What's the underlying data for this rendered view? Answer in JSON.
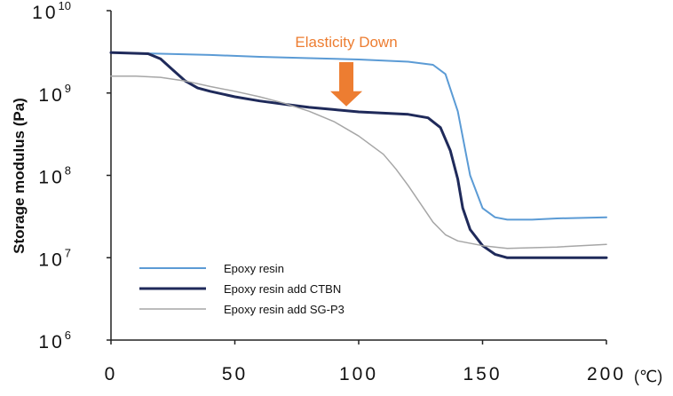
{
  "chart_data": {
    "type": "line",
    "title": "",
    "xlabel": "",
    "x_unit": "(℃)",
    "ylabel": "Storage modulus (Pa)",
    "xlim": [
      0,
      200
    ],
    "ylim": [
      1000000,
      10000000000
    ],
    "y_scale": "log",
    "grid": false,
    "legend_position": "bottom-left",
    "x_ticks": [
      "0",
      "50",
      "100",
      "150",
      "200"
    ],
    "y_ticks": [
      {
        "base": "10",
        "exp": "10"
      },
      {
        "base": "10",
        "exp": "9"
      },
      {
        "base": "10",
        "exp": "8"
      },
      {
        "base": "10",
        "exp": "7"
      },
      {
        "base": "10",
        "exp": "6"
      }
    ],
    "annotation": {
      "text": "Elasticity Down",
      "color": "#ed7d31",
      "x": 95,
      "y": 1000000000
    },
    "series": [
      {
        "name": "Epoxy resin",
        "color": "#5b9bd5",
        "width": 2,
        "x": [
          0,
          20,
          40,
          60,
          80,
          100,
          120,
          130,
          135,
          140,
          145,
          150,
          155,
          160,
          170,
          180,
          200
        ],
        "y": [
          3100000000,
          3000000000,
          2900000000,
          2750000000,
          2650000000,
          2550000000,
          2400000000,
          2200000000,
          1700000000,
          600000000,
          100000000,
          40000000,
          31000000,
          29000000,
          29000000,
          30000000,
          31000000
        ]
      },
      {
        "name": "Epoxy resin add CTBN",
        "color": "#1f2a5a",
        "width": 3,
        "x": [
          0,
          15,
          20,
          25,
          30,
          35,
          40,
          50,
          60,
          70,
          80,
          90,
          100,
          110,
          120,
          128,
          133,
          137,
          140,
          142,
          145,
          150,
          155,
          160,
          170,
          200
        ],
        "y": [
          3100000000,
          3000000000,
          2600000000,
          1900000000,
          1400000000,
          1150000000,
          1050000000,
          900000000,
          800000000,
          730000000,
          670000000,
          630000000,
          590000000,
          570000000,
          550000000,
          500000000,
          380000000,
          200000000,
          90000000,
          40000000,
          22000000,
          14000000,
          11000000,
          10000000,
          10000000,
          10000000
        ]
      },
      {
        "name": "Epoxy resin add SG-P3",
        "color": "#a6a6a6",
        "width": 1.5,
        "x": [
          0,
          10,
          20,
          30,
          40,
          50,
          60,
          70,
          80,
          90,
          100,
          110,
          115,
          120,
          125,
          130,
          135,
          140,
          150,
          160,
          180,
          200
        ],
        "y": [
          1600000000,
          1600000000,
          1550000000,
          1400000000,
          1200000000,
          1050000000,
          900000000,
          750000000,
          600000000,
          450000000,
          300000000,
          180000000,
          120000000,
          75000000,
          45000000,
          27000000,
          19000000,
          16000000,
          14000000,
          13000000,
          13500000,
          14500000
        ]
      }
    ]
  }
}
